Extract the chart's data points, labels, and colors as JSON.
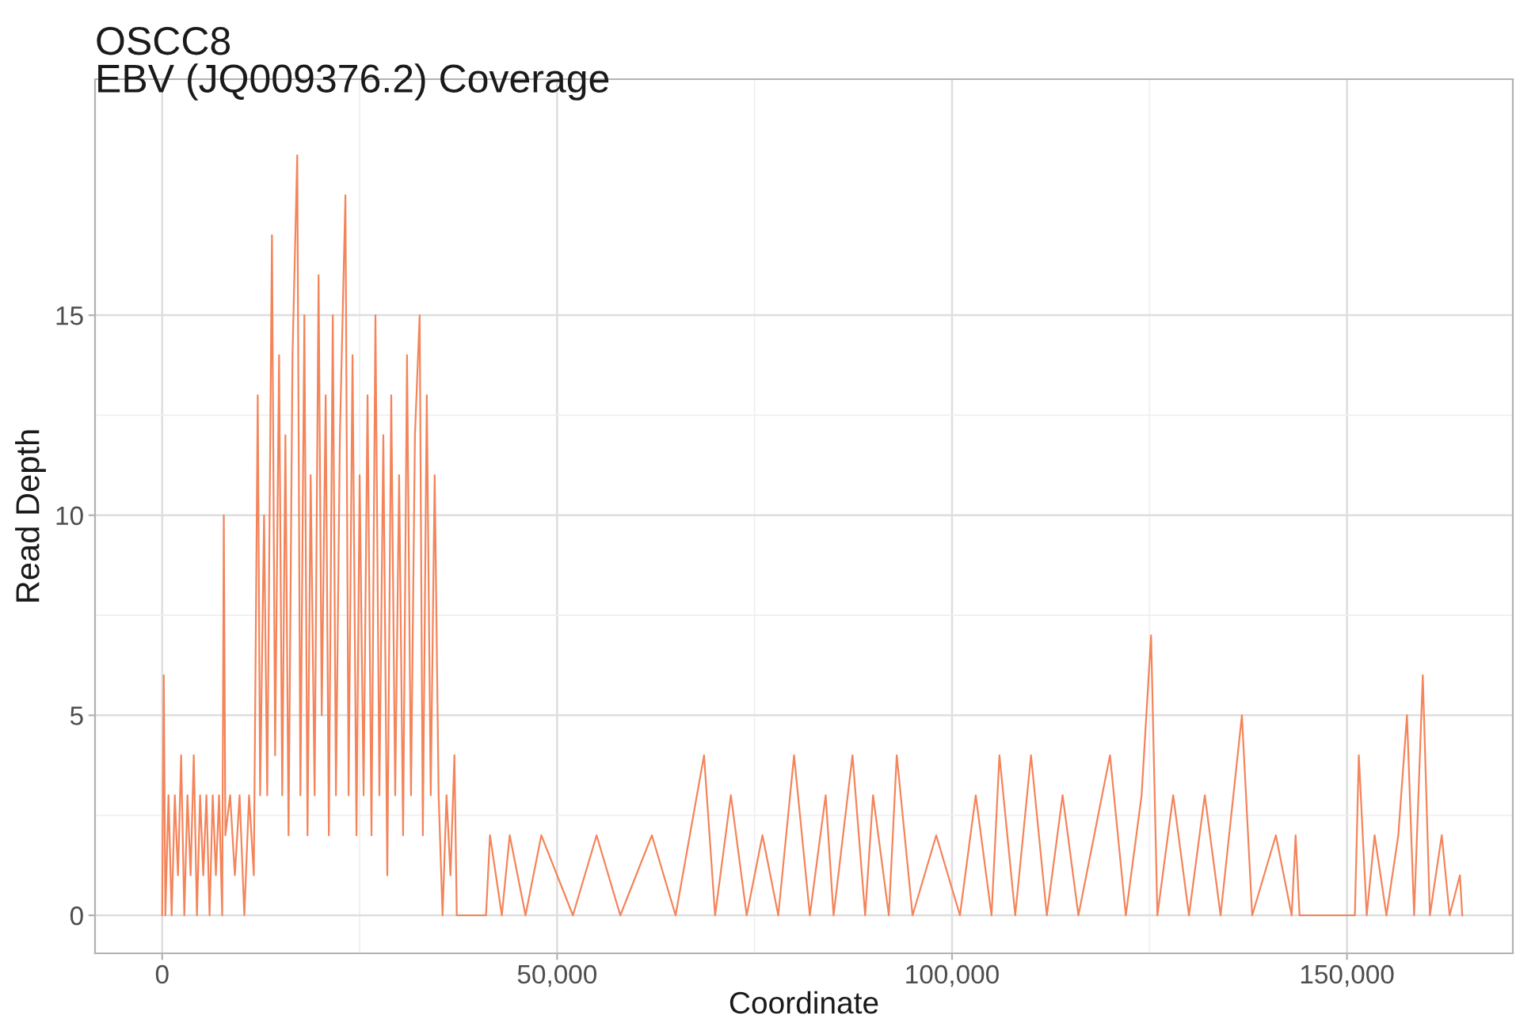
{
  "chart_data": {
    "type": "line",
    "title": "OSCC8",
    "subtitle": "EBV (JQ009376.2) Coverage",
    "xlabel": "Coordinate",
    "ylabel": "Read Depth",
    "xlim": [
      -8500,
      171000
    ],
    "ylim": [
      -0.95,
      20.9
    ],
    "xticks": [
      {
        "value": 0,
        "label": "0"
      },
      {
        "value": 50000,
        "label": "50,000"
      },
      {
        "value": 100000,
        "label": "100,000"
      },
      {
        "value": 150000,
        "label": "150,000"
      }
    ],
    "yticks": [
      0,
      5,
      10,
      15
    ],
    "grid": true,
    "marker": "none",
    "line_style": "solid",
    "series": [
      {
        "color": "#f4845a",
        "x": [
          0,
          200,
          400,
          800,
          1200,
          1600,
          2000,
          2400,
          2800,
          3200,
          3600,
          4000,
          4400,
          4800,
          5200,
          5600,
          6000,
          6400,
          6800,
          7200,
          7600,
          7800,
          8000,
          8600,
          9200,
          9800,
          10400,
          11000,
          11600,
          12100,
          12400,
          12900,
          13300,
          13900,
          14300,
          14800,
          15200,
          15600,
          16000,
          16500,
          17100,
          17500,
          18000,
          18400,
          18800,
          19300,
          19800,
          20200,
          20700,
          21100,
          21600,
          22000,
          22500,
          23200,
          23600,
          24100,
          24600,
          25000,
          25500,
          26000,
          26500,
          27000,
          27500,
          28000,
          28500,
          29000,
          29500,
          30000,
          30500,
          31000,
          31500,
          32000,
          32600,
          33000,
          33500,
          34000,
          34500,
          35000,
          35500,
          36000,
          36500,
          37000,
          37300,
          41000,
          41500,
          43000,
          44000,
          46000,
          48000,
          52000,
          55000,
          58000,
          62000,
          65000,
          68600,
          70000,
          72000,
          74000,
          76000,
          78000,
          80000,
          82000,
          84000,
          85000,
          87400,
          89000,
          90000,
          92000,
          93000,
          95000,
          98000,
          101000,
          103000,
          105000,
          106000,
          108000,
          110000,
          112000,
          114000,
          116000,
          118000,
          120000,
          122000,
          124000,
          125200,
          126000,
          128000,
          130000,
          132000,
          134000,
          136700,
          138000,
          141000,
          143000,
          143500,
          144000,
          151000,
          151500,
          152500,
          153500,
          155000,
          156500,
          157600,
          158500,
          159600,
          160500,
          162000,
          163000,
          164300,
          164600
        ],
        "values": [
          0,
          6,
          0,
          3,
          0,
          3,
          1,
          4,
          0,
          3,
          1,
          4,
          0,
          3,
          1,
          3,
          0,
          3,
          1,
          3,
          0,
          10,
          2,
          3,
          1,
          3,
          0,
          3,
          1,
          13,
          3,
          10,
          3,
          17,
          4,
          14,
          3,
          12,
          2,
          14,
          19,
          3,
          15,
          2,
          11,
          3,
          16,
          5,
          13,
          2,
          15,
          3,
          12,
          18,
          3,
          14,
          2,
          11,
          3,
          13,
          2,
          15,
          3,
          12,
          1,
          13,
          3,
          11,
          2,
          14,
          3,
          12,
          15,
          2,
          13,
          3,
          11,
          3,
          0,
          3,
          1,
          4,
          0,
          0,
          2,
          0,
          2,
          0,
          2,
          0,
          2,
          0,
          2,
          0,
          4,
          0,
          3,
          0,
          2,
          0,
          4,
          0,
          3,
          0,
          4,
          0,
          3,
          0,
          4,
          0,
          2,
          0,
          3,
          0,
          4,
          0,
          4,
          0,
          3,
          0,
          2,
          4,
          0,
          3,
          7,
          0,
          3,
          0,
          3,
          0,
          5,
          0,
          2,
          0,
          2,
          0,
          0,
          4,
          0,
          2,
          0,
          2,
          5,
          0,
          6,
          0,
          2,
          0,
          1,
          0
        ]
      }
    ]
  }
}
